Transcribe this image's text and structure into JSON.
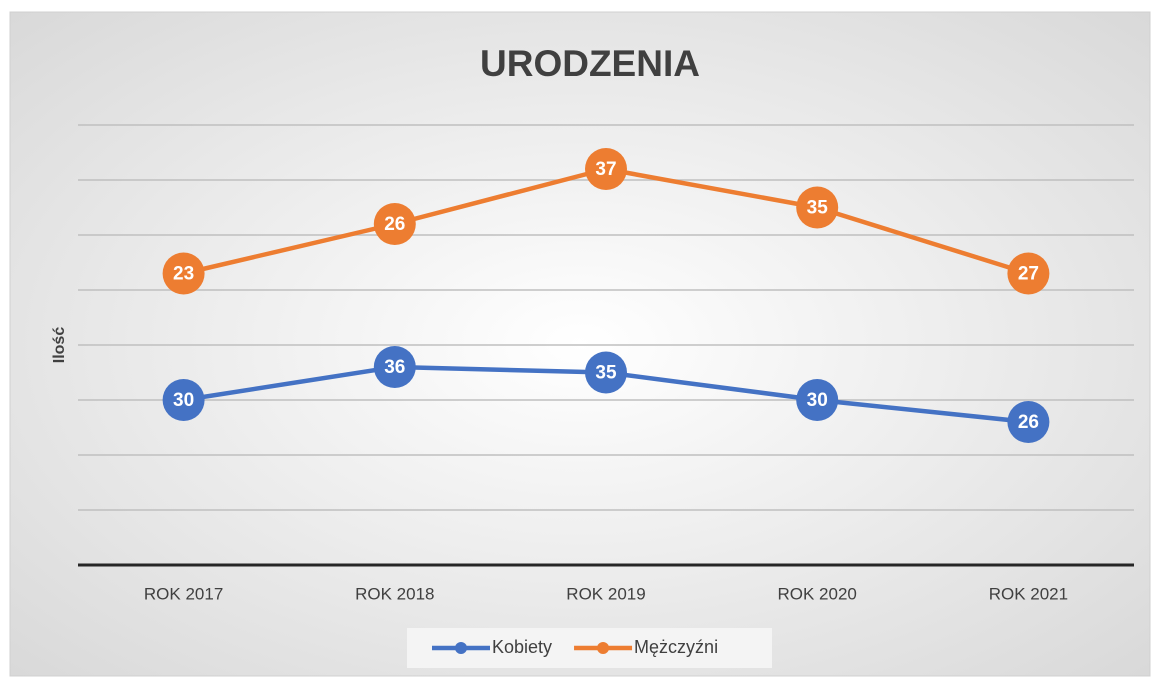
{
  "chart_data": {
    "type": "line",
    "stacked": true,
    "title": "URODZENIA",
    "y_label": "Ilość",
    "categories": [
      "ROK 2017",
      "ROK 2018",
      "ROK 2019",
      "ROK 2020",
      "ROK 2021"
    ],
    "series": [
      {
        "name": "Kobiety",
        "color": "#4472c4",
        "values": [
          30,
          36,
          35,
          30,
          26
        ]
      },
      {
        "name": "Mężczyźni",
        "color": "#ed7d31",
        "values": [
          23,
          26,
          37,
          35,
          27
        ]
      }
    ],
    "ylim": [
      0,
      80
    ],
    "yticks": [
      0,
      10,
      20,
      30,
      40,
      50,
      60,
      70,
      80
    ],
    "grid": true,
    "legend": "bottom"
  }
}
